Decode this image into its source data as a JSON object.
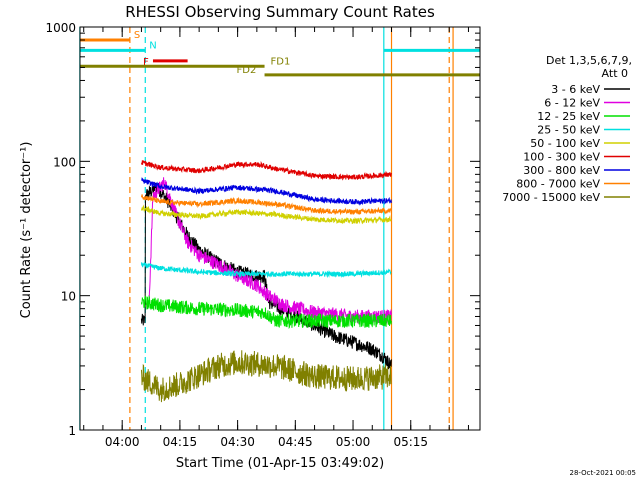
{
  "chart_data": {
    "type": "line",
    "title": "RHESSI Observing Summary Count Rates",
    "xlabel": "Start Time (01-Apr-15 03:49:02)",
    "ylabel": "Count Rate (s⁻¹ detector⁻¹)",
    "yscale": "log",
    "ylim": [
      1,
      1000
    ],
    "xlim": [
      "03:49:02",
      "05:33:00"
    ],
    "x_ticks": [
      "04:00",
      "04:15",
      "04:30",
      "04:45",
      "05:00",
      "05:15"
    ],
    "y_ticks": [
      "1",
      "10",
      "100",
      "1000"
    ],
    "legend_header": [
      "Det 1,3,5,6,7,9,",
      "Att 0"
    ],
    "legend_position": "right",
    "timestamp": "28-Oct-2021 00:05",
    "series": [
      {
        "name": "3 - 6 keV",
        "color": "#000000",
        "points": [
          [
            "04:05",
            6.5
          ],
          [
            "04:06",
            6.5
          ],
          [
            "04:06",
            55
          ],
          [
            "04:09",
            65
          ],
          [
            "04:12",
            50
          ],
          [
            "04:15",
            35
          ],
          [
            "04:17",
            28
          ],
          [
            "04:20",
            22
          ],
          [
            "04:23",
            19
          ],
          [
            "04:26",
            17
          ],
          [
            "04:30",
            15
          ],
          [
            "04:35",
            14
          ],
          [
            "04:37",
            14
          ],
          [
            "04:38",
            9
          ],
          [
            "04:45",
            7
          ],
          [
            "04:50",
            6
          ],
          [
            "04:55",
            5
          ],
          [
            "05:00",
            4.5
          ],
          [
            "05:05",
            4
          ],
          [
            "05:08",
            3.5
          ],
          [
            "05:10",
            3
          ]
        ]
      },
      {
        "name": "6 - 12 keV",
        "color": "#e000e0",
        "points": [
          [
            "04:07",
            9
          ],
          [
            "04:08",
            55
          ],
          [
            "04:11",
            70
          ],
          [
            "04:14",
            40
          ],
          [
            "04:17",
            25
          ],
          [
            "04:20",
            20
          ],
          [
            "04:25",
            17
          ],
          [
            "04:30",
            14
          ],
          [
            "04:35",
            12
          ],
          [
            "04:38",
            10
          ],
          [
            "04:42",
            8.5
          ],
          [
            "04:50",
            7.5
          ],
          [
            "05:00",
            7
          ],
          [
            "05:10",
            7
          ]
        ]
      },
      {
        "name": "12 - 25 keV",
        "color": "#00e000",
        "points": [
          [
            "04:05",
            9
          ],
          [
            "04:10",
            8.5
          ],
          [
            "04:20",
            8
          ],
          [
            "04:30",
            7.8
          ],
          [
            "04:37",
            7.5
          ],
          [
            "04:40",
            6.5
          ],
          [
            "05:00",
            6.5
          ],
          [
            "05:10",
            6.5
          ]
        ]
      },
      {
        "name": "25 - 50 keV",
        "color": "#00e0e0",
        "points": [
          [
            "04:05",
            17
          ],
          [
            "04:10",
            16
          ],
          [
            "04:20",
            15
          ],
          [
            "04:30",
            14.5
          ],
          [
            "04:40",
            14.5
          ],
          [
            "04:50",
            14.5
          ],
          [
            "05:00",
            14.5
          ],
          [
            "05:10",
            15
          ]
        ]
      },
      {
        "name": "50 - 100 keV",
        "color": "#d0d000",
        "points": [
          [
            "04:05",
            45
          ],
          [
            "04:10",
            41
          ],
          [
            "04:20",
            39
          ],
          [
            "04:30",
            42
          ],
          [
            "04:40",
            40
          ],
          [
            "04:50",
            37
          ],
          [
            "05:00",
            36
          ],
          [
            "05:10",
            37
          ]
        ]
      },
      {
        "name": "100 - 300 keV",
        "color": "#e00000",
        "points": [
          [
            "04:05",
            98
          ],
          [
            "04:10",
            90
          ],
          [
            "04:20",
            85
          ],
          [
            "04:30",
            95
          ],
          [
            "04:35",
            95
          ],
          [
            "04:40",
            88
          ],
          [
            "04:50",
            78
          ],
          [
            "05:00",
            76
          ],
          [
            "05:10",
            80
          ]
        ]
      },
      {
        "name": "300 - 800 keV",
        "color": "#0000e0",
        "points": [
          [
            "04:05",
            72
          ],
          [
            "04:10",
            65
          ],
          [
            "04:20",
            60
          ],
          [
            "04:30",
            64
          ],
          [
            "04:40",
            60
          ],
          [
            "04:50",
            52
          ],
          [
            "05:00",
            50
          ],
          [
            "05:10",
            51
          ]
        ]
      },
      {
        "name": "800 - 7000 keV",
        "color": "#ff8000",
        "points": [
          [
            "04:05",
            55
          ],
          [
            "04:10",
            50
          ],
          [
            "04:20",
            48
          ],
          [
            "04:30",
            51
          ],
          [
            "04:40",
            48
          ],
          [
            "04:50",
            43
          ],
          [
            "05:00",
            42
          ],
          [
            "05:10",
            43
          ]
        ]
      },
      {
        "name": "7000 - 15000 keV",
        "color": "#808000",
        "points": [
          [
            "04:05",
            2.5
          ],
          [
            "04:10",
            2
          ],
          [
            "04:15",
            2.2
          ],
          [
            "04:25",
            3
          ],
          [
            "04:30",
            3.2
          ],
          [
            "04:40",
            3
          ],
          [
            "04:50",
            2.5
          ],
          [
            "05:00",
            2.4
          ],
          [
            "05:10",
            2.5
          ]
        ]
      }
    ],
    "flags": [
      {
        "label": "S",
        "color": "#ff8000",
        "y": 800,
        "x_start": "03:49",
        "x_end": "04:02"
      },
      {
        "label": "N",
        "color": "#00e0e0",
        "y": 670,
        "x_start": "03:49",
        "x_end": "04:06",
        "x_start2": "05:08",
        "x_end2": "05:33"
      },
      {
        "label": "F",
        "color": "#e00000",
        "y": 560,
        "x_start": "04:08",
        "x_end": "04:17"
      },
      {
        "label": "FD1",
        "color": "#808000",
        "y": 510,
        "x_start": "03:49",
        "x_end": "04:37"
      },
      {
        "label": "FD2",
        "color": "#808000",
        "y": 440,
        "x_start": "04:37",
        "x_end": "05:33"
      }
    ],
    "vlines": [
      {
        "x": "03:49",
        "color": "#00e0e0",
        "style": "solid"
      },
      {
        "x": "04:02",
        "color": "#ff8000",
        "style": "dashed"
      },
      {
        "x": "04:06",
        "color": "#00e0e0",
        "style": "dashed"
      },
      {
        "x": "05:08",
        "color": "#00e0e0",
        "style": "solid"
      },
      {
        "x": "05:10",
        "color": "#ff8000",
        "style": "solid"
      },
      {
        "x": "05:25",
        "color": "#ff8000",
        "style": "dashed"
      },
      {
        "x": "05:26",
        "color": "#ff8000",
        "style": "solid"
      }
    ]
  }
}
